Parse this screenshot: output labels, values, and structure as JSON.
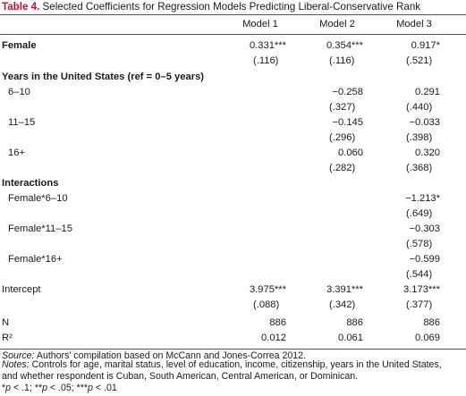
{
  "title": {
    "label": "Table 4.",
    "text": "Selected Coefficients for Regression Models Predicting Liberal-Conservative Rank"
  },
  "columns": [
    "Model 1",
    "Model 2",
    "Model 3"
  ],
  "rows": {
    "female": {
      "label": "Female",
      "m1": "0.331***",
      "m2": "0.354***",
      "m3": "0.917*",
      "se1": "(.116)",
      "se2": "(.116)",
      "se3": "(.521)"
    },
    "years_header": {
      "label": "Years in the United States (ref = 0–5 years)"
    },
    "y6_10": {
      "label": "6–10",
      "m2": "−0.258",
      "m3": "0.291",
      "se2": "(.327)",
      "se3": "(.440)"
    },
    "y11_15": {
      "label": "11–15",
      "m2": "−0.145",
      "m3": "−0.033",
      "se2": "(.296)",
      "se3": "(.398)"
    },
    "y16": {
      "label": "16+",
      "m2": "0.060",
      "m3": "0.320",
      "se2": "(.282)",
      "se3": "(.368)"
    },
    "interactions_header": {
      "label": "Interactions"
    },
    "f6_10": {
      "label": "Female*6–10",
      "m3": "−1.213*",
      "se3": "(.649)"
    },
    "f11_15": {
      "label": "Female*11–15",
      "m3": "−0.303",
      "se3": "(.578)"
    },
    "f16": {
      "label": "Female*16+",
      "m3": "−0.599",
      "se3": "(.544)"
    },
    "intercept": {
      "label": "Intercept",
      "m1": "3.975***",
      "m2": "3.391***",
      "m3": "3.173***",
      "se1": "(.088)",
      "se2": "(.342)",
      "se3": "(.377)"
    },
    "n": {
      "label": "N",
      "m1": "886",
      "m2": "886",
      "m3": "886"
    },
    "r2": {
      "label": "R²",
      "m1": "0.012",
      "m2": "0.061",
      "m3": "0.069"
    }
  },
  "notes": {
    "source_label": "Source:",
    "source_text": " Authors’ compilation based on McCann and Jones-Correa 2012.",
    "notes_label": "Notes:",
    "notes_line1": " Controls for age, marital status, level of education, income, citizenship, years in the United States,",
    "notes_line2": "and whether respondent is Cuban, South American, Central American, or Dominican.",
    "sig_line": "*p < .1; **p < .05; ***p < .01"
  },
  "colors": {
    "title_label": "#c8102e",
    "rule": "#555555"
  }
}
